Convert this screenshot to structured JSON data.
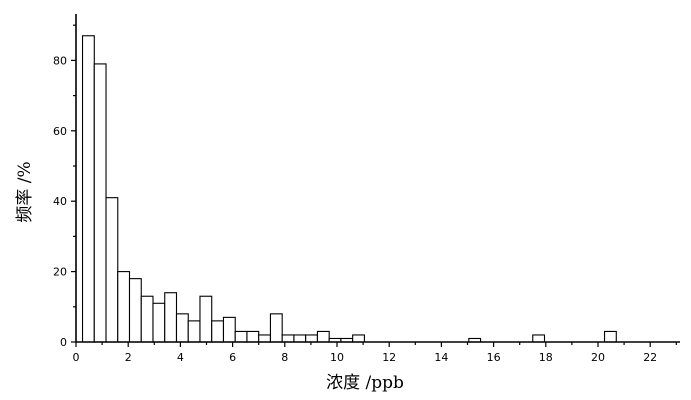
{
  "chart_data": {
    "type": "bar",
    "xlabel": "浓度 /ppb",
    "ylabel": "频率 /%",
    "xlim": [
      0,
      23
    ],
    "ylim": [
      0,
      92
    ],
    "x_ticks": [
      0,
      2,
      4,
      6,
      8,
      10,
      12,
      14,
      16,
      18,
      20,
      22
    ],
    "y_ticks": [
      0,
      20,
      40,
      60,
      80
    ],
    "bin_width": 0.45,
    "x": [
      0.475,
      0.925,
      1.375,
      1.825,
      2.275,
      2.725,
      3.175,
      3.625,
      4.075,
      4.525,
      4.975,
      5.425,
      5.875,
      6.325,
      6.775,
      7.225,
      7.675,
      8.125,
      8.575,
      9.025,
      9.475,
      9.925,
      10.375,
      10.825,
      11.275,
      15.275,
      17.725,
      20.475
    ],
    "values": [
      87,
      79,
      41,
      20,
      18,
      13,
      11,
      14,
      8,
      6,
      13,
      6,
      7,
      3,
      3,
      2,
      8,
      2,
      2,
      2,
      3,
      1,
      1,
      2,
      0,
      1,
      2,
      3
    ],
    "grid": false,
    "legend": "none"
  }
}
